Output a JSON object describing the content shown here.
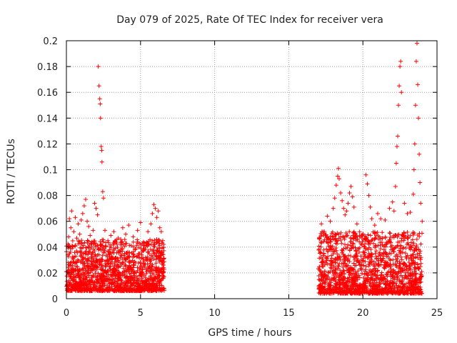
{
  "chart_data": {
    "type": "scatter",
    "title": "Day 079 of 2025, Rate Of TEC Index for receiver vera",
    "xlabel": "GPS time / hours",
    "ylabel": "ROTI / TECUs",
    "xlim": [
      0,
      25
    ],
    "ylim": [
      0,
      0.2
    ],
    "xticks": [
      0,
      5,
      10,
      15,
      20,
      25
    ],
    "xtick_labels": [
      "0",
      "5",
      "10",
      "15",
      "20",
      "25"
    ],
    "yticks": [
      0,
      0.02,
      0.04,
      0.06,
      0.08,
      0.1,
      0.12,
      0.14,
      0.16,
      0.18,
      0.2
    ],
    "ytick_labels": [
      "0",
      "0.02",
      "0.04",
      "0.06",
      "0.08",
      "0.1",
      "0.12",
      "0.14",
      "0.16",
      "0.18",
      "0.2"
    ],
    "grid": true,
    "marker": "+",
    "point_color": "#ff0000",
    "series": [
      {
        "points": [
          [
            0.0,
            0.021
          ],
          [
            0.1,
            0.034
          ],
          [
            0.15,
            0.048
          ],
          [
            0.2,
            0.062
          ],
          [
            0.3,
            0.055
          ],
          [
            0.35,
            0.068
          ],
          [
            0.4,
            0.041
          ],
          [
            0.5,
            0.052
          ],
          [
            0.6,
            0.063
          ],
          [
            0.7,
            0.047
          ],
          [
            0.8,
            0.058
          ],
          [
            0.9,
            0.05
          ],
          [
            1.0,
            0.061
          ],
          [
            1.1,
            0.066
          ],
          [
            1.2,
            0.072
          ],
          [
            1.3,
            0.077
          ],
          [
            1.4,
            0.06
          ],
          [
            1.5,
            0.056
          ],
          [
            1.6,
            0.049
          ],
          [
            1.7,
            0.044
          ],
          [
            1.8,
            0.053
          ],
          [
            1.9,
            0.074
          ],
          [
            2.0,
            0.07
          ],
          [
            2.1,
            0.065
          ],
          [
            2.15,
            0.18
          ],
          [
            2.2,
            0.165
          ],
          [
            2.25,
            0.155
          ],
          [
            2.28,
            0.151
          ],
          [
            2.3,
            0.14
          ],
          [
            2.35,
            0.118
          ],
          [
            2.38,
            0.115
          ],
          [
            2.4,
            0.106
          ],
          [
            2.45,
            0.083
          ],
          [
            2.5,
            0.078
          ],
          [
            2.6,
            0.053
          ],
          [
            2.8,
            0.045
          ],
          [
            3.0,
            0.049
          ],
          [
            3.2,
            0.052
          ],
          [
            3.5,
            0.047
          ],
          [
            3.8,
            0.055
          ],
          [
            4.0,
            0.05
          ],
          [
            4.2,
            0.057
          ],
          [
            4.5,
            0.048
          ],
          [
            4.8,
            0.053
          ],
          [
            5.0,
            0.059
          ],
          [
            5.2,
            0.044
          ],
          [
            5.5,
            0.052
          ],
          [
            5.7,
            0.058
          ],
          [
            5.8,
            0.066
          ],
          [
            5.9,
            0.073
          ],
          [
            6.0,
            0.07
          ],
          [
            6.1,
            0.063
          ],
          [
            6.2,
            0.068
          ],
          [
            6.3,
            0.055
          ],
          [
            6.4,
            0.052
          ],
          [
            6.5,
            0.045
          ],
          [
            17.2,
            0.058
          ],
          [
            17.4,
            0.052
          ],
          [
            17.6,
            0.064
          ],
          [
            17.8,
            0.06
          ],
          [
            18.0,
            0.07
          ],
          [
            18.1,
            0.078
          ],
          [
            18.2,
            0.088
          ],
          [
            18.3,
            0.095
          ],
          [
            18.35,
            0.101
          ],
          [
            18.4,
            0.093
          ],
          [
            18.5,
            0.082
          ],
          [
            18.6,
            0.076
          ],
          [
            18.7,
            0.07
          ],
          [
            18.8,
            0.065
          ],
          [
            18.9,
            0.068
          ],
          [
            19.0,
            0.074
          ],
          [
            19.1,
            0.082
          ],
          [
            19.2,
            0.087
          ],
          [
            19.3,
            0.079
          ],
          [
            19.4,
            0.071
          ],
          [
            19.6,
            0.058
          ],
          [
            19.8,
            0.048
          ],
          [
            20.0,
            0.05
          ],
          [
            20.2,
            0.096
          ],
          [
            20.3,
            0.089
          ],
          [
            20.4,
            0.08
          ],
          [
            20.5,
            0.071
          ],
          [
            20.6,
            0.062
          ],
          [
            20.8,
            0.057
          ],
          [
            21.0,
            0.066
          ],
          [
            21.2,
            0.062
          ],
          [
            21.5,
            0.061
          ],
          [
            21.8,
            0.07
          ],
          [
            22.0,
            0.075
          ],
          [
            22.1,
            0.068
          ],
          [
            22.2,
            0.087
          ],
          [
            22.25,
            0.105
          ],
          [
            22.3,
            0.118
          ],
          [
            22.35,
            0.126
          ],
          [
            22.4,
            0.15
          ],
          [
            22.45,
            0.165
          ],
          [
            22.5,
            0.18
          ],
          [
            22.55,
            0.184
          ],
          [
            22.6,
            0.16
          ],
          [
            22.8,
            0.074
          ],
          [
            23.0,
            0.066
          ],
          [
            23.2,
            0.067
          ],
          [
            23.4,
            0.081
          ],
          [
            23.45,
            0.1
          ],
          [
            23.5,
            0.12
          ],
          [
            23.55,
            0.15
          ],
          [
            23.6,
            0.184
          ],
          [
            23.65,
            0.198
          ],
          [
            23.7,
            0.166
          ],
          [
            23.75,
            0.14
          ],
          [
            23.8,
            0.112
          ],
          [
            23.85,
            0.09
          ],
          [
            23.9,
            0.074
          ],
          [
            24.0,
            0.06
          ]
        ],
        "bands": [
          {
            "x0": 0.0,
            "x1": 6.6,
            "low": 0.006,
            "high": 0.046,
            "count": 1400
          },
          {
            "x0": 17.0,
            "x1": 24.0,
            "low": 0.004,
            "high": 0.052,
            "count": 1500
          }
        ]
      }
    ]
  }
}
